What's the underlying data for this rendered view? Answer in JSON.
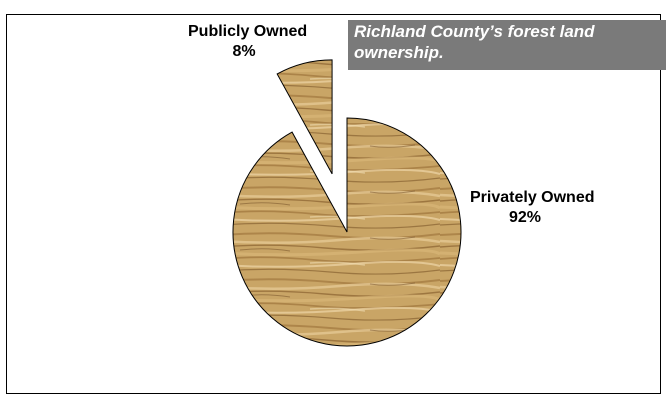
{
  "chart_data": {
    "type": "pie",
    "title": "Richland County’s forest land ownership.",
    "slices": [
      {
        "label": "Publicly Owned",
        "value": 8,
        "value_label": "8%",
        "exploded": true
      },
      {
        "label": "Privately Owned",
        "value": 92,
        "value_label": "92%",
        "exploded": false
      }
    ],
    "fill_pattern": "oak-wood-grain",
    "colors": {
      "wood_base": "#c9a566",
      "wood_dark": "#8a6230",
      "wood_light": "#e2c48c",
      "title_bg": "#7a7a7a"
    }
  }
}
